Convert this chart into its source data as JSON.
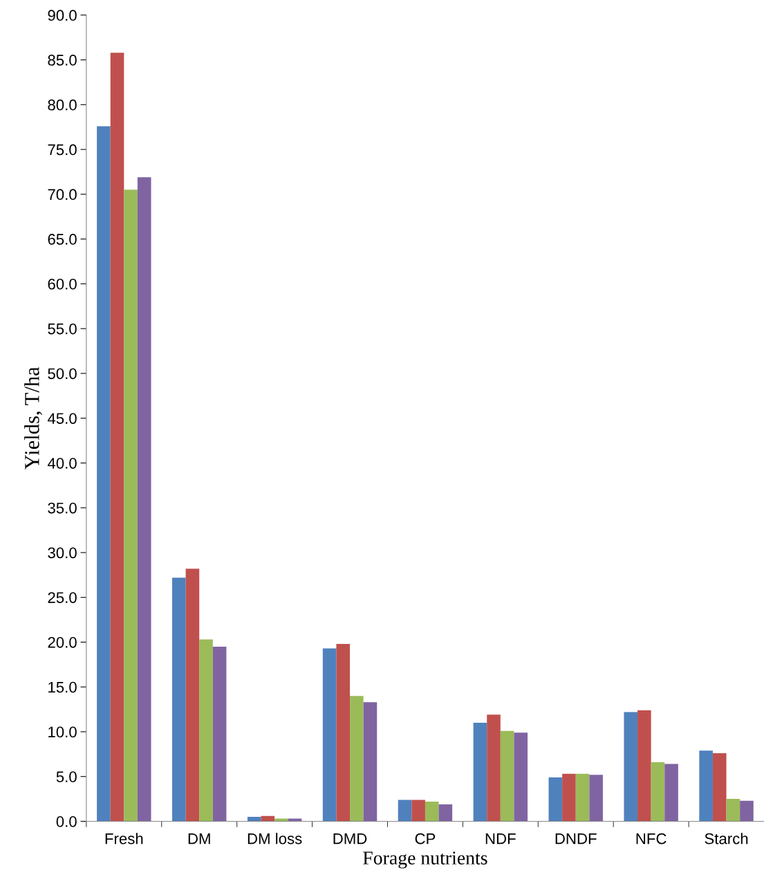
{
  "chart_data": {
    "type": "bar",
    "xlabel": "Forage nutrients",
    "ylabel": "Yields, T/ha",
    "categories": [
      "Fresh",
      "DM",
      "DM loss",
      "DMD",
      "CP",
      "NDF",
      "DNDF",
      "NFC",
      "Starch"
    ],
    "series": [
      {
        "color": "#4f81bd",
        "values": [
          77.6,
          27.2,
          0.5,
          19.3,
          2.4,
          11.0,
          4.9,
          12.2,
          7.9
        ]
      },
      {
        "color": "#c0504d",
        "values": [
          85.8,
          28.2,
          0.6,
          19.8,
          2.4,
          11.9,
          5.3,
          12.4,
          7.6
        ]
      },
      {
        "color": "#9bbb59",
        "values": [
          70.5,
          20.3,
          0.3,
          14.0,
          2.2,
          10.1,
          5.3,
          6.6,
          2.5
        ]
      },
      {
        "color": "#8064a2",
        "values": [
          71.9,
          19.5,
          0.3,
          13.3,
          1.9,
          9.9,
          5.2,
          6.4,
          2.3
        ]
      }
    ],
    "ylim": [
      0,
      90
    ],
    "yticks": [
      {
        "value": 0,
        "label": "0.0"
      },
      {
        "value": 5,
        "label": "5.0"
      },
      {
        "value": 10,
        "label": "10.0"
      },
      {
        "value": 15,
        "label": "15.0"
      },
      {
        "value": 20,
        "label": "20.0"
      },
      {
        "value": 25,
        "label": "25.0"
      },
      {
        "value": 30,
        "label": "30.0"
      },
      {
        "value": 35,
        "label": "35.0"
      },
      {
        "value": 40,
        "label": "40.0"
      },
      {
        "value": 45,
        "label": "45.0"
      },
      {
        "value": 50,
        "label": "50.0"
      },
      {
        "value": 55,
        "label": "55.0"
      },
      {
        "value": 60,
        "label": "60.0"
      },
      {
        "value": 65,
        "label": "65.0"
      },
      {
        "value": 70,
        "label": "70.0"
      },
      {
        "value": 75,
        "label": "75.0"
      },
      {
        "value": 80,
        "label": "80.0"
      },
      {
        "value": 85,
        "label": "85.0"
      },
      {
        "value": 90,
        "label": "90.0"
      }
    ],
    "grid": false
  }
}
